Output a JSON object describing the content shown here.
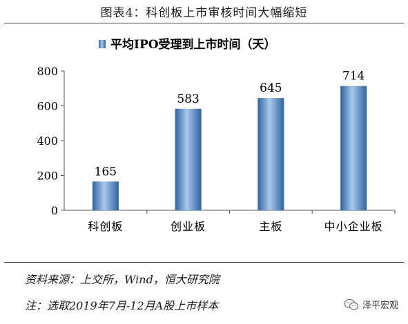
{
  "figure_title": "图表4：科创板上市审核时间大幅缩短",
  "source_text": "资料来源：上交所，Wind，恒大研究院",
  "remark_text": "注：选取2019年7月-12月A股上市样本",
  "brand": {
    "name": "泽平宏观",
    "icon": "wechat-icon"
  },
  "colors": {
    "bar": "#4a86c6",
    "bar_light": "#a9c9ec",
    "bar_dark": "#2f63a0"
  },
  "chart_data": {
    "type": "bar",
    "title": "平均IPO受理到上市时间（天）",
    "legend_position": "top",
    "categories": [
      "科创板",
      "创业板",
      "主板",
      "中小企业板"
    ],
    "values": [
      165,
      583,
      645,
      714
    ],
    "ylim": [
      0,
      800
    ],
    "yticks": [
      0,
      200,
      400,
      600,
      800
    ],
    "grid": false
  }
}
